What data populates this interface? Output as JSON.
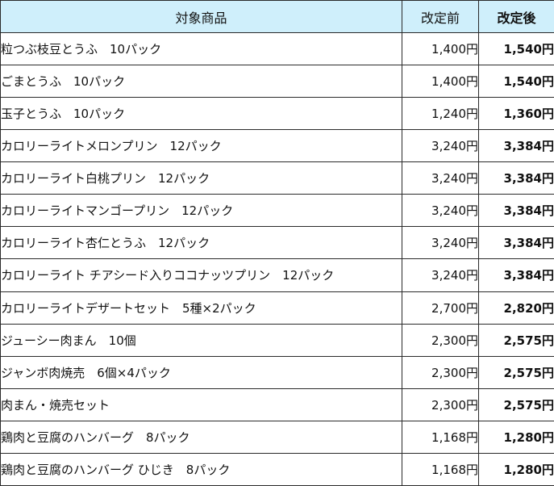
{
  "header": {
    "product": "対象商品",
    "before": "改定前",
    "after": "改定後"
  },
  "rows": [
    {
      "name": "粒つぶ枝豆とうふ　10パック",
      "before": "1,400円",
      "after": "1,540円"
    },
    {
      "name": "ごまとうふ　10パック",
      "before": "1,400円",
      "after": "1,540円"
    },
    {
      "name": "玉子とうふ　10パック",
      "before": "1,240円",
      "after": "1,360円"
    },
    {
      "name": "カロリーライトメロンプリン　12パック",
      "before": "3,240円",
      "after": "3,384円"
    },
    {
      "name": "カロリーライト白桃プリン　12パック",
      "before": "3,240円",
      "after": "3,384円"
    },
    {
      "name": "カロリーライトマンゴープリン　12パック",
      "before": "3,240円",
      "after": "3,384円"
    },
    {
      "name": "カロリーライト杏仁とうふ　12パック",
      "before": "3,240円",
      "after": "3,384円"
    },
    {
      "name": "カロリーライト チアシード入りココナッツプリン　12パック",
      "before": "3,240円",
      "after": "3,384円"
    },
    {
      "name": "カロリーライトデザートセット　5種×2パック",
      "before": "2,700円",
      "after": "2,820円"
    },
    {
      "name": "ジューシー肉まん　10個",
      "before": "2,300円",
      "after": "2,575円"
    },
    {
      "name": "ジャンボ肉焼売　6個×4パック",
      "before": "2,300円",
      "after": "2,575円"
    },
    {
      "name": "肉まん・焼売セット",
      "before": "2,300円",
      "after": "2,575円"
    },
    {
      "name": "鶏肉と豆腐のハンバーグ　8パック",
      "before": "1,168円",
      "after": "1,280円"
    },
    {
      "name": "鶏肉と豆腐のハンバーグ ひじき　8パック",
      "before": "1,168円",
      "after": "1,280円"
    }
  ],
  "colors": {
    "header_background": "#cfeffb",
    "border": "#2a2a2a"
  }
}
